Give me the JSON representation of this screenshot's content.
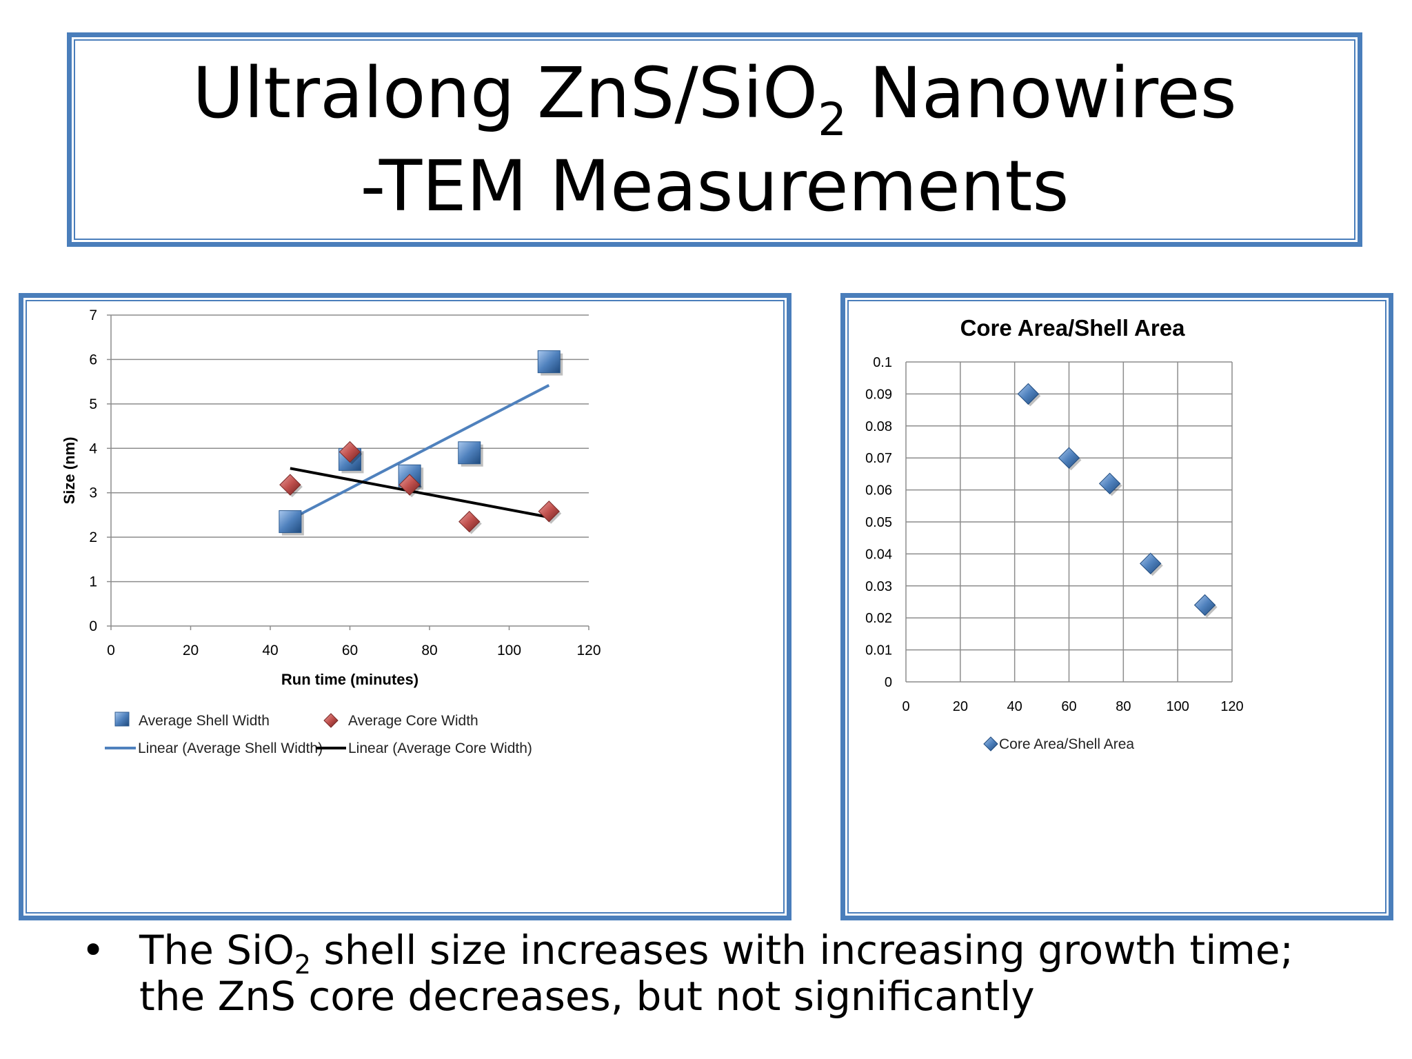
{
  "title": {
    "line1_pre": "Ultralong ZnS/SiO",
    "line1_sub": "2",
    "line1_post": " Nanowires",
    "line2": "-TEM Measurements"
  },
  "bullet": {
    "marker": "•",
    "pre": "The SiO",
    "sub": "2",
    "post": " shell size increases with increasing growth time; the ZnS core decreases, but not significantly"
  },
  "chart_data": [
    {
      "type": "scatter",
      "title": "",
      "xlabel": "Run time (minutes)",
      "ylabel": "Size (nm)",
      "xlim": [
        0,
        120
      ],
      "ylim": [
        0,
        7
      ],
      "xticks": [
        0,
        20,
        40,
        60,
        80,
        100,
        120
      ],
      "yticks": [
        0,
        1,
        2,
        3,
        4,
        5,
        6,
        7
      ],
      "grid": "horizontal",
      "legend_position": "bottom",
      "series": [
        {
          "name": "Average Shell Width",
          "marker": "square",
          "color": "#4f81bd",
          "x": [
            45,
            60,
            75,
            90,
            110
          ],
          "y": [
            2.35,
            3.75,
            3.38,
            3.9,
            5.95
          ]
        },
        {
          "name": "Average Core Width",
          "marker": "diamond",
          "color": "#c0504d",
          "x": [
            45,
            60,
            75,
            90,
            110
          ],
          "y": [
            3.18,
            3.92,
            3.18,
            2.35,
            2.58
          ]
        }
      ],
      "trendlines": [
        {
          "name": "Linear (Average Shell Width)",
          "color": "#4f81bd",
          "x": [
            45,
            110
          ],
          "y": [
            2.4,
            5.42
          ]
        },
        {
          "name": "Linear (Average Core Width)",
          "color": "#000000",
          "x": [
            45,
            110
          ],
          "y": [
            3.55,
            2.45
          ]
        }
      ]
    },
    {
      "type": "scatter",
      "title": "Core Area/Shell Area",
      "xlabel": "",
      "ylabel": "",
      "xlim": [
        0,
        120
      ],
      "ylim": [
        0,
        0.1
      ],
      "xticks": [
        0,
        20,
        40,
        60,
        80,
        100,
        120
      ],
      "yticks": [
        0,
        0.01,
        0.02,
        0.03,
        0.04,
        0.05,
        0.06,
        0.07,
        0.08,
        0.09,
        0.1
      ],
      "grid": "both",
      "legend_position": "bottom",
      "series": [
        {
          "name": "Core Area/Shell Area",
          "marker": "diamond",
          "color": "#4f81bd",
          "x": [
            45,
            60,
            75,
            90,
            110
          ],
          "y": [
            0.09,
            0.07,
            0.062,
            0.037,
            0.024
          ]
        }
      ]
    }
  ]
}
